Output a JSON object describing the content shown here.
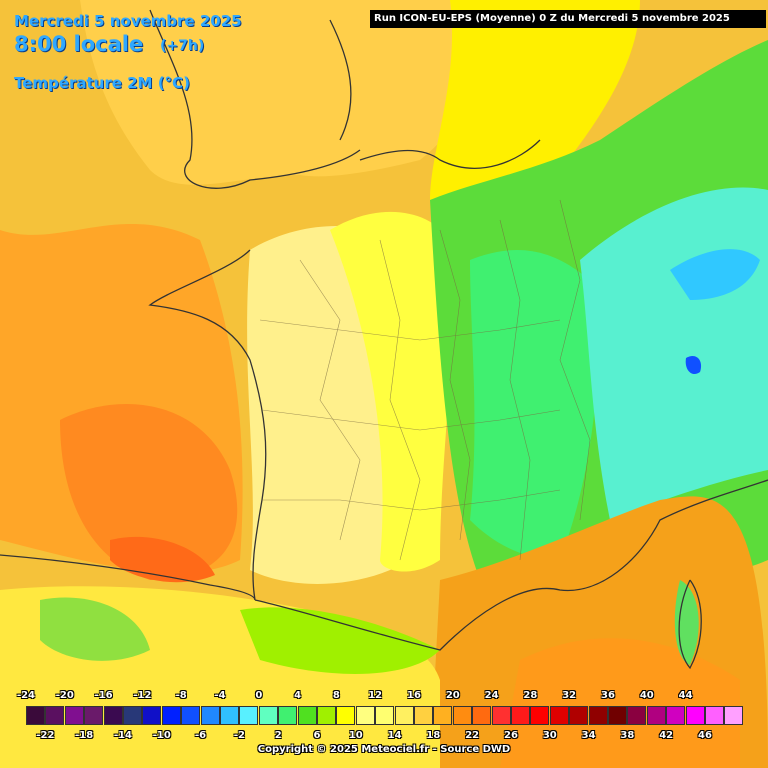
{
  "header": {
    "date": "Mercredi 5 novembre 2025",
    "time": "8:00 locale",
    "offset": "(+7h)",
    "variable": "Température 2M (°C)"
  },
  "run_label": "Run ICON-EU-EPS (Moyenne) 0 Z du Mercredi 5 novembre 2025",
  "legend": {
    "top_labels": [
      "-24",
      "-20",
      "-16",
      "-12",
      "-8",
      "-4",
      "0",
      "4",
      "8",
      "12",
      "16",
      "20",
      "24",
      "28",
      "32",
      "36",
      "40",
      "44"
    ],
    "bottom_labels": [
      "-22",
      "-18",
      "-14",
      "-10",
      "-6",
      "-2",
      "2",
      "6",
      "10",
      "14",
      "18",
      "22",
      "26",
      "30",
      "34",
      "38",
      "42",
      "46"
    ],
    "colors": [
      "#3a0a3a",
      "#5a1060",
      "#800f90",
      "#6a1a6a",
      "#3a0a50",
      "#283878",
      "#1010c8",
      "#0020ff",
      "#1050ff",
      "#2088ff",
      "#30c0ff",
      "#58f0ff",
      "#60ffc0",
      "#40f070",
      "#50e020",
      "#a0f000",
      "#ffff00",
      "#ffff80",
      "#ffff70",
      "#fff060",
      "#ffd040",
      "#ffb020",
      "#ff8c10",
      "#ff6a10",
      "#ff3030",
      "#ff1a1a",
      "#ff0000",
      "#e00000",
      "#b00000",
      "#900000",
      "#700000",
      "#8a0040",
      "#b00080",
      "#d000c0",
      "#ff00ff",
      "#ff60ff",
      "#ffa0ff"
    ]
  },
  "copyright": "Copyright © 2025 Meteociel.fr - Source DWD",
  "palette": {
    "sea_orange": "#f5a11a",
    "warm_orange": "#ff7a18",
    "yellow": "#ffe83a",
    "light_yellow": "#fff28a",
    "green": "#4cd840",
    "cyan": "#3ee6d8"
  }
}
